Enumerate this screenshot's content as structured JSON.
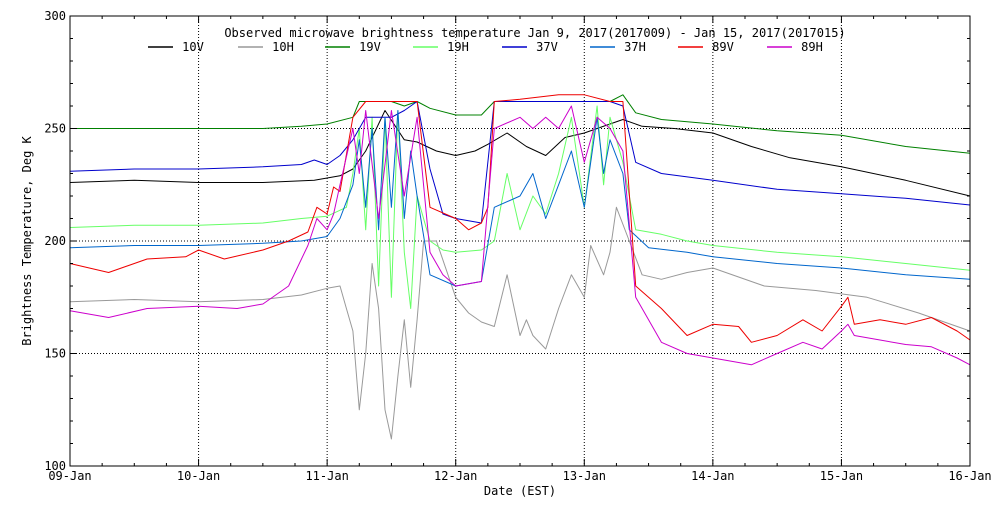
{
  "chart_data": {
    "type": "line",
    "title": "Observed microwave brightness temperature Jan  9, 2017(2017009) - Jan 15, 2017(2017015)",
    "xlabel": "Date (EST)",
    "ylabel": "Brightness Temperature, Deg K",
    "xlim": [
      0,
      7
    ],
    "ylim": [
      100,
      300
    ],
    "yticks": [
      100,
      150,
      200,
      250,
      300
    ],
    "xticks": [
      {
        "x": 0,
        "label": "09-Jan"
      },
      {
        "x": 1,
        "label": "10-Jan"
      },
      {
        "x": 2,
        "label": "11-Jan"
      },
      {
        "x": 3,
        "label": "12-Jan"
      },
      {
        "x": 4,
        "label": "13-Jan"
      },
      {
        "x": 5,
        "label": "14-Jan"
      },
      {
        "x": 6,
        "label": "15-Jan"
      },
      {
        "x": 7,
        "label": "16-Jan"
      }
    ],
    "grid": "dotted",
    "legend_position": "top",
    "series": [
      {
        "name": "10V",
        "color": "#000000",
        "points": [
          [
            0,
            226
          ],
          [
            0.5,
            227
          ],
          [
            1,
            226
          ],
          [
            1.5,
            226
          ],
          [
            1.9,
            227
          ],
          [
            2.1,
            229
          ],
          [
            2.2,
            232
          ],
          [
            2.3,
            240
          ],
          [
            2.45,
            258
          ],
          [
            2.6,
            245
          ],
          [
            2.7,
            244
          ],
          [
            2.85,
            240
          ],
          [
            3,
            238
          ],
          [
            3.15,
            240
          ],
          [
            3.25,
            243
          ],
          [
            3.4,
            248
          ],
          [
            3.55,
            242
          ],
          [
            3.7,
            238
          ],
          [
            3.85,
            246
          ],
          [
            4,
            248
          ],
          [
            4.1,
            250
          ],
          [
            4.2,
            252
          ],
          [
            4.3,
            254
          ],
          [
            4.45,
            251
          ],
          [
            4.7,
            250
          ],
          [
            5,
            248
          ],
          [
            5.3,
            242
          ],
          [
            5.6,
            237
          ],
          [
            6,
            233
          ],
          [
            6.5,
            227
          ],
          [
            7,
            220
          ]
        ]
      },
      {
        "name": "10H",
        "color": "#999999",
        "points": [
          [
            0,
            173
          ],
          [
            0.5,
            174
          ],
          [
            1,
            173
          ],
          [
            1.5,
            174
          ],
          [
            1.8,
            176
          ],
          [
            2,
            179
          ],
          [
            2.1,
            180
          ],
          [
            2.15,
            170
          ],
          [
            2.2,
            160
          ],
          [
            2.25,
            125
          ],
          [
            2.3,
            150
          ],
          [
            2.35,
            190
          ],
          [
            2.4,
            170
          ],
          [
            2.45,
            125
          ],
          [
            2.5,
            112
          ],
          [
            2.55,
            140
          ],
          [
            2.6,
            165
          ],
          [
            2.65,
            135
          ],
          [
            2.7,
            165
          ],
          [
            2.75,
            200
          ],
          [
            2.85,
            200
          ],
          [
            3,
            175
          ],
          [
            3.1,
            168
          ],
          [
            3.2,
            164
          ],
          [
            3.3,
            162
          ],
          [
            3.4,
            185
          ],
          [
            3.5,
            158
          ],
          [
            3.55,
            165
          ],
          [
            3.6,
            158
          ],
          [
            3.7,
            152
          ],
          [
            3.8,
            170
          ],
          [
            3.9,
            185
          ],
          [
            4,
            175
          ],
          [
            4.05,
            198
          ],
          [
            4.15,
            185
          ],
          [
            4.2,
            195
          ],
          [
            4.25,
            215
          ],
          [
            4.35,
            200
          ],
          [
            4.45,
            185
          ],
          [
            4.6,
            183
          ],
          [
            4.8,
            186
          ],
          [
            5,
            188
          ],
          [
            5.4,
            180
          ],
          [
            5.8,
            178
          ],
          [
            6.2,
            175
          ],
          [
            6.6,
            168
          ],
          [
            7,
            160
          ]
        ]
      },
      {
        "name": "19V",
        "color": "#008000",
        "points": [
          [
            0,
            250
          ],
          [
            0.5,
            250
          ],
          [
            1,
            250
          ],
          [
            1.5,
            250
          ],
          [
            1.8,
            251
          ],
          [
            2,
            252
          ],
          [
            2.2,
            255
          ],
          [
            2.25,
            262
          ],
          [
            2.5,
            262
          ],
          [
            2.6,
            260
          ],
          [
            2.7,
            262
          ],
          [
            2.8,
            259
          ],
          [
            3,
            256
          ],
          [
            3.2,
            256
          ],
          [
            3.3,
            262
          ],
          [
            3.5,
            262
          ],
          [
            4,
            262
          ],
          [
            4.2,
            262
          ],
          [
            4.3,
            265
          ],
          [
            4.4,
            257
          ],
          [
            4.6,
            254
          ],
          [
            5,
            252
          ],
          [
            5.5,
            249
          ],
          [
            6,
            247
          ],
          [
            6.5,
            242
          ],
          [
            7,
            239
          ]
        ]
      },
      {
        "name": "19H",
        "color": "#66ff66",
        "points": [
          [
            0,
            206
          ],
          [
            0.5,
            207
          ],
          [
            1,
            207
          ],
          [
            1.5,
            208
          ],
          [
            1.8,
            210
          ],
          [
            2,
            211
          ],
          [
            2.15,
            215
          ],
          [
            2.2,
            230
          ],
          [
            2.25,
            250
          ],
          [
            2.3,
            205
          ],
          [
            2.35,
            255
          ],
          [
            2.4,
            180
          ],
          [
            2.45,
            255
          ],
          [
            2.5,
            175
          ],
          [
            2.55,
            258
          ],
          [
            2.6,
            195
          ],
          [
            2.65,
            170
          ],
          [
            2.7,
            220
          ],
          [
            2.8,
            200
          ],
          [
            2.9,
            196
          ],
          [
            3,
            195
          ],
          [
            3.2,
            196
          ],
          [
            3.3,
            200
          ],
          [
            3.4,
            230
          ],
          [
            3.5,
            205
          ],
          [
            3.6,
            220
          ],
          [
            3.7,
            212
          ],
          [
            3.8,
            230
          ],
          [
            3.9,
            255
          ],
          [
            4,
            215
          ],
          [
            4.1,
            260
          ],
          [
            4.15,
            225
          ],
          [
            4.2,
            255
          ],
          [
            4.3,
            235
          ],
          [
            4.35,
            220
          ],
          [
            4.4,
            205
          ],
          [
            4.6,
            203
          ],
          [
            4.8,
            200
          ],
          [
            5,
            198
          ],
          [
            5.5,
            195
          ],
          [
            6,
            193
          ],
          [
            6.5,
            190
          ],
          [
            7,
            187
          ]
        ]
      },
      {
        "name": "37V",
        "color": "#0000cc",
        "points": [
          [
            0,
            231
          ],
          [
            0.5,
            232
          ],
          [
            1,
            232
          ],
          [
            1.5,
            233
          ],
          [
            1.8,
            234
          ],
          [
            1.9,
            236
          ],
          [
            2,
            234
          ],
          [
            2.1,
            238
          ],
          [
            2.2,
            245
          ],
          [
            2.3,
            255
          ],
          [
            2.5,
            255
          ],
          [
            2.6,
            258
          ],
          [
            2.7,
            262
          ],
          [
            2.8,
            232
          ],
          [
            2.9,
            212
          ],
          [
            3,
            210
          ],
          [
            3.2,
            208
          ],
          [
            3.3,
            262
          ],
          [
            3.5,
            262
          ],
          [
            3.8,
            262
          ],
          [
            4,
            262
          ],
          [
            4.2,
            262
          ],
          [
            4.3,
            260
          ],
          [
            4.4,
            235
          ],
          [
            4.6,
            230
          ],
          [
            5,
            227
          ],
          [
            5.5,
            223
          ],
          [
            6,
            221
          ],
          [
            6.5,
            219
          ],
          [
            7,
            216
          ]
        ]
      },
      {
        "name": "37H",
        "color": "#0066cc",
        "points": [
          [
            0,
            197
          ],
          [
            0.5,
            198
          ],
          [
            1,
            198
          ],
          [
            1.5,
            199
          ],
          [
            1.8,
            200
          ],
          [
            2,
            202
          ],
          [
            2.1,
            210
          ],
          [
            2.2,
            225
          ],
          [
            2.25,
            245
          ],
          [
            2.3,
            215
          ],
          [
            2.35,
            250
          ],
          [
            2.4,
            205
          ],
          [
            2.45,
            255
          ],
          [
            2.5,
            215
          ],
          [
            2.55,
            258
          ],
          [
            2.6,
            210
          ],
          [
            2.65,
            240
          ],
          [
            2.7,
            220
          ],
          [
            2.8,
            185
          ],
          [
            3,
            180
          ],
          [
            3.2,
            182
          ],
          [
            3.3,
            215
          ],
          [
            3.5,
            220
          ],
          [
            3.6,
            230
          ],
          [
            3.7,
            210
          ],
          [
            3.8,
            225
          ],
          [
            3.9,
            240
          ],
          [
            4,
            215
          ],
          [
            4.1,
            255
          ],
          [
            4.15,
            230
          ],
          [
            4.2,
            245
          ],
          [
            4.3,
            230
          ],
          [
            4.35,
            205
          ],
          [
            4.5,
            197
          ],
          [
            4.8,
            195
          ],
          [
            5,
            193
          ],
          [
            5.5,
            190
          ],
          [
            6,
            188
          ],
          [
            6.5,
            185
          ],
          [
            7,
            183
          ]
        ]
      },
      {
        "name": "89V",
        "color": "#ee0000",
        "points": [
          [
            0,
            190
          ],
          [
            0.3,
            186
          ],
          [
            0.6,
            192
          ],
          [
            0.9,
            193
          ],
          [
            1,
            196
          ],
          [
            1.2,
            192
          ],
          [
            1.5,
            196
          ],
          [
            1.7,
            200
          ],
          [
            1.85,
            204
          ],
          [
            1.92,
            215
          ],
          [
            2,
            212
          ],
          [
            2.05,
            224
          ],
          [
            2.1,
            222
          ],
          [
            2.2,
            255
          ],
          [
            2.3,
            262
          ],
          [
            2.5,
            262
          ],
          [
            2.6,
            262
          ],
          [
            2.7,
            262
          ],
          [
            2.8,
            215
          ],
          [
            3,
            210
          ],
          [
            3.1,
            205
          ],
          [
            3.2,
            208
          ],
          [
            3.25,
            215
          ],
          [
            3.3,
            262
          ],
          [
            3.5,
            263
          ],
          [
            3.8,
            265
          ],
          [
            4,
            265
          ],
          [
            4.2,
            262
          ],
          [
            4.3,
            262
          ],
          [
            4.4,
            180
          ],
          [
            4.6,
            170
          ],
          [
            4.8,
            158
          ],
          [
            5,
            163
          ],
          [
            5.2,
            162
          ],
          [
            5.3,
            155
          ],
          [
            5.5,
            158
          ],
          [
            5.7,
            165
          ],
          [
            5.85,
            160
          ],
          [
            6,
            171
          ],
          [
            6.05,
            175
          ],
          [
            6.1,
            163
          ],
          [
            6.3,
            165
          ],
          [
            6.5,
            163
          ],
          [
            6.7,
            166
          ],
          [
            6.9,
            160
          ],
          [
            7,
            156
          ]
        ]
      },
      {
        "name": "89H",
        "color": "#cc00cc",
        "points": [
          [
            0,
            169
          ],
          [
            0.3,
            166
          ],
          [
            0.6,
            170
          ],
          [
            1,
            171
          ],
          [
            1.3,
            170
          ],
          [
            1.5,
            172
          ],
          [
            1.7,
            180
          ],
          [
            1.85,
            198
          ],
          [
            1.92,
            210
          ],
          [
            2,
            205
          ],
          [
            2.05,
            212
          ],
          [
            2.1,
            225
          ],
          [
            2.2,
            250
          ],
          [
            2.25,
            230
          ],
          [
            2.3,
            258
          ],
          [
            2.4,
            210
          ],
          [
            2.5,
            258
          ],
          [
            2.6,
            220
          ],
          [
            2.7,
            255
          ],
          [
            2.8,
            195
          ],
          [
            2.9,
            185
          ],
          [
            3,
            180
          ],
          [
            3.2,
            182
          ],
          [
            3.3,
            250
          ],
          [
            3.5,
            255
          ],
          [
            3.6,
            250
          ],
          [
            3.7,
            255
          ],
          [
            3.8,
            250
          ],
          [
            3.9,
            260
          ],
          [
            4,
            235
          ],
          [
            4.1,
            255
          ],
          [
            4.2,
            250
          ],
          [
            4.3,
            240
          ],
          [
            4.4,
            175
          ],
          [
            4.6,
            155
          ],
          [
            4.8,
            150
          ],
          [
            5,
            148
          ],
          [
            5.3,
            145
          ],
          [
            5.5,
            150
          ],
          [
            5.7,
            155
          ],
          [
            5.85,
            152
          ],
          [
            6,
            160
          ],
          [
            6.05,
            163
          ],
          [
            6.1,
            158
          ],
          [
            6.3,
            156
          ],
          [
            6.5,
            154
          ],
          [
            6.7,
            153
          ],
          [
            6.9,
            148
          ],
          [
            7,
            145
          ]
        ]
      }
    ]
  }
}
